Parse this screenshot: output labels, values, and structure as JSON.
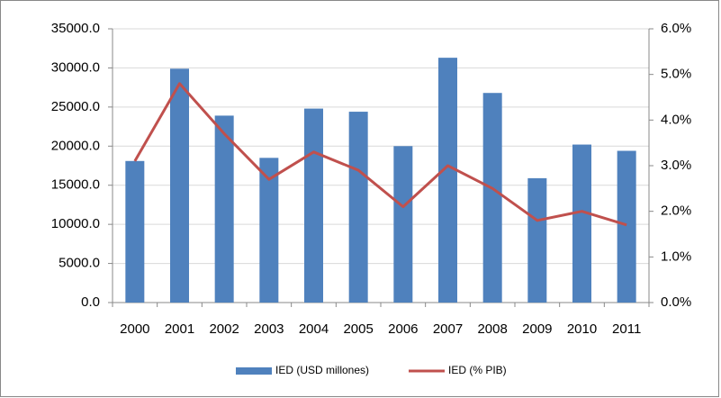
{
  "chart_data": {
    "type": "bar_line",
    "categories": [
      "2000",
      "2001",
      "2002",
      "2003",
      "2004",
      "2005",
      "2006",
      "2007",
      "2008",
      "2009",
      "2010",
      "2011"
    ],
    "series": [
      {
        "name": "IED (USD millones)",
        "type": "bar",
        "color": "#4f81bd",
        "axis": "y",
        "values": [
          18100,
          29900,
          23900,
          18500,
          24800,
          24400,
          20000,
          31300,
          26800,
          15900,
          20200,
          19400
        ]
      },
      {
        "name": "IED (% PIB)",
        "type": "line",
        "color": "#c0504d",
        "axis": "y2",
        "values": [
          3.1,
          4.8,
          3.7,
          2.7,
          3.3,
          2.9,
          2.1,
          3.0,
          2.5,
          1.8,
          2.0,
          1.7
        ]
      }
    ],
    "ylim": [
      0,
      35000
    ],
    "yticks": [
      {
        "value": 0,
        "label": "0.0"
      },
      {
        "value": 5000,
        "label": "5000.0"
      },
      {
        "value": 10000,
        "label": "10000.0"
      },
      {
        "value": 15000,
        "label": "15000.0"
      },
      {
        "value": 20000,
        "label": "20000.0"
      },
      {
        "value": 25000,
        "label": "25000.0"
      },
      {
        "value": 30000,
        "label": "30000.0"
      },
      {
        "value": 35000,
        "label": "35000.0"
      }
    ],
    "y2lim": [
      0,
      6
    ],
    "y2ticks": [
      {
        "value": 0,
        "label": "0.0%"
      },
      {
        "value": 1,
        "label": "1.0%"
      },
      {
        "value": 2,
        "label": "2.0%"
      },
      {
        "value": 3,
        "label": "3.0%"
      },
      {
        "value": 4,
        "label": "4.0%"
      },
      {
        "value": 5,
        "label": "5.0%"
      },
      {
        "value": 6,
        "label": "6.0%"
      }
    ],
    "grid": true,
    "legend": "bottom"
  }
}
